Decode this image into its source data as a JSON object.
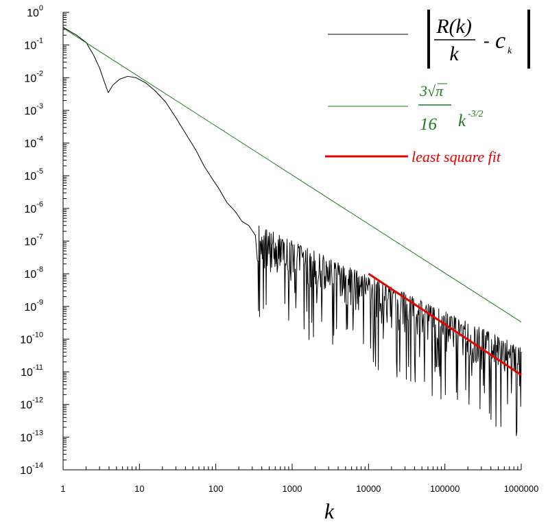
{
  "chart_data": {
    "type": "line",
    "title": "",
    "xlabel": "k",
    "ylabel": "",
    "x_scale": "log",
    "y_scale": "log",
    "xlim": [
      1,
      1000000
    ],
    "ylim": [
      1e-14,
      1
    ],
    "grid": false,
    "legend_position": "top-right",
    "x_tick_labels": [
      {
        "x": 1,
        "label": "1"
      },
      {
        "x": 10,
        "label": "10"
      },
      {
        "x": 100,
        "label": "100"
      },
      {
        "x": 1000,
        "label": "1000"
      },
      {
        "x": 10000,
        "label": "10000"
      },
      {
        "x": 100000,
        "label": "100000"
      },
      {
        "x": 1000000,
        "label": "1000000"
      }
    ],
    "y_tick_labels": [
      {
        "exp": 0,
        "base": "10",
        "sup": "0"
      },
      {
        "exp": -1,
        "base": "10",
        "sup": "-1"
      },
      {
        "exp": -2,
        "base": "10",
        "sup": "-2"
      },
      {
        "exp": -3,
        "base": "10",
        "sup": "-3"
      },
      {
        "exp": -4,
        "base": "10",
        "sup": "-4"
      },
      {
        "exp": -5,
        "base": "10",
        "sup": "-5"
      },
      {
        "exp": -6,
        "base": "10",
        "sup": "-6"
      },
      {
        "exp": -7,
        "base": "10",
        "sup": "-7"
      },
      {
        "exp": -8,
        "base": "10",
        "sup": "-8"
      },
      {
        "exp": -9,
        "base": "10",
        "sup": "-9"
      },
      {
        "exp": -10,
        "base": "10",
        "sup": "-10"
      },
      {
        "exp": -11,
        "base": "10",
        "sup": "-11"
      },
      {
        "exp": -12,
        "base": "10",
        "sup": "-12"
      },
      {
        "exp": -13,
        "base": "10",
        "sup": "-13"
      },
      {
        "exp": -14,
        "base": "10",
        "sup": "-14"
      }
    ],
    "series": [
      {
        "key": "abs_error",
        "color": "#000000",
        "line_width": 1,
        "legend": {
          "R": "R(k)",
          "k": "k",
          "c": "c",
          "c_sub": "k"
        },
        "points": [
          {
            "x": 1,
            "y": 0.35
          },
          {
            "x": 1.5,
            "y": 0.2
          },
          {
            "x": 2,
            "y": 0.12
          },
          {
            "x": 2.5,
            "y": 0.05
          },
          {
            "x": 3,
            "y": 0.02
          },
          {
            "x": 3.5,
            "y": 0.007
          },
          {
            "x": 3.9,
            "y": 0.0035
          },
          {
            "x": 4.5,
            "y": 0.006
          },
          {
            "x": 5.5,
            "y": 0.009
          },
          {
            "x": 7,
            "y": 0.011
          },
          {
            "x": 9,
            "y": 0.01
          },
          {
            "x": 12,
            "y": 0.007
          },
          {
            "x": 16,
            "y": 0.004
          },
          {
            "x": 22,
            "y": 0.0018
          },
          {
            "x": 30,
            "y": 0.0006
          },
          {
            "x": 40,
            "y": 0.0002
          },
          {
            "x": 55,
            "y": 6e-05
          },
          {
            "x": 70,
            "y": 2e-05
          },
          {
            "x": 90,
            "y": 8e-06
          },
          {
            "x": 110,
            "y": 4e-06
          },
          {
            "x": 140,
            "y": 1.5e-06
          },
          {
            "x": 180,
            "y": 8e-07
          },
          {
            "x": 220,
            "y": 4e-07
          },
          {
            "x": 270,
            "y": 3e-07
          },
          {
            "x": 330,
            "y": 1.5e-07
          },
          {
            "x": 400,
            "y": 1e-07
          },
          {
            "x": 500,
            "y": 6e-08
          },
          {
            "x": 600,
            "y": 4e-08
          },
          {
            "x": 800,
            "y": 3e-08
          },
          {
            "x": 1000,
            "y": 1.5e-08
          }
        ],
        "noisy_tail": {
          "x_from": 350,
          "x_to": 1000000,
          "samples": 480,
          "envelope_log10_at_x_from": -6.5,
          "envelope_log10_slope": -1.5,
          "depth_decades": 2.8,
          "seed": 7
        }
      },
      {
        "key": "asymptote",
        "color": "#1a7a1a",
        "line_width": 1,
        "legend": {
          "num": "3",
          "sqrt": "√",
          "pi": "π",
          "den": "16",
          "k": "k",
          "exponent": "-3/2"
        },
        "points": [
          {
            "x": 1,
            "y": 0.332
          },
          {
            "x": 1000000,
            "y": 3.32e-10
          }
        ]
      },
      {
        "key": "least_squares",
        "color": "#e60000",
        "line_width": 3,
        "legend": {
          "label": "least square fit"
        },
        "points": [
          {
            "x": 10000,
            "y": 1e-08
          },
          {
            "x": 1000000,
            "y": 8e-12
          }
        ]
      }
    ]
  }
}
